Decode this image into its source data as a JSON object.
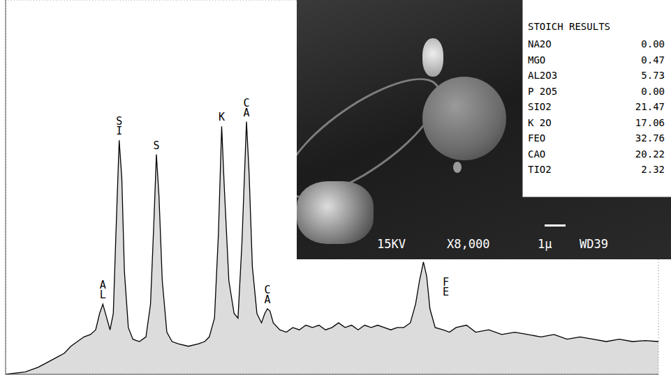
{
  "chart_data": {
    "type": "area",
    "color": "#000000",
    "grid": true,
    "tick_labels": false,
    "xlim": [
      0,
      10
    ],
    "xticks": [
      0,
      1,
      2,
      3,
      4,
      5,
      6,
      7,
      8,
      9,
      10
    ],
    "ylim": [
      0,
      8
    ],
    "yticks": [
      0,
      1,
      2,
      3,
      4,
      5,
      6,
      7,
      8
    ],
    "x": [
      0.0,
      0.3,
      0.5,
      0.7,
      0.9,
      1.0,
      1.1,
      1.2,
      1.3,
      1.38,
      1.44,
      1.49,
      1.54,
      1.6,
      1.65,
      1.69,
      1.74,
      1.78,
      1.82,
      1.88,
      1.95,
      2.05,
      2.15,
      2.22,
      2.27,
      2.31,
      2.35,
      2.4,
      2.47,
      2.55,
      2.65,
      2.8,
      2.95,
      3.05,
      3.12,
      3.2,
      3.26,
      3.31,
      3.35,
      3.42,
      3.5,
      3.56,
      3.62,
      3.69,
      3.73,
      3.78,
      3.85,
      3.92,
      3.97,
      4.01,
      4.05,
      4.1,
      4.2,
      4.3,
      4.4,
      4.5,
      4.6,
      4.7,
      4.8,
      4.9,
      5.0,
      5.1,
      5.2,
      5.3,
      5.4,
      5.5,
      5.6,
      5.7,
      5.8,
      5.9,
      6.0,
      6.1,
      6.2,
      6.28,
      6.34,
      6.4,
      6.45,
      6.5,
      6.58,
      6.7,
      6.8,
      6.9,
      7.06,
      7.2,
      7.4,
      7.6,
      7.8,
      8.0,
      8.2,
      8.4,
      8.6,
      8.8,
      9.0,
      9.2,
      9.4,
      9.6,
      9.8,
      10.0
    ],
    "values": [
      0,
      0.05,
      0.15,
      0.3,
      0.45,
      0.6,
      0.7,
      0.8,
      0.85,
      0.95,
      1.3,
      1.5,
      1.25,
      0.95,
      1.3,
      3.0,
      5.0,
      4.2,
      2.2,
      1.0,
      0.75,
      0.7,
      0.8,
      1.5,
      3.2,
      4.7,
      3.8,
      2.0,
      0.9,
      0.7,
      0.65,
      0.6,
      0.65,
      0.7,
      0.8,
      1.2,
      3.0,
      5.3,
      4.0,
      2.0,
      1.3,
      1.2,
      2.8,
      5.4,
      4.3,
      2.3,
      1.3,
      1.1,
      1.3,
      1.4,
      1.35,
      1.1,
      0.95,
      0.9,
      1.0,
      0.95,
      1.05,
      1.0,
      1.05,
      0.95,
      1.0,
      1.1,
      1.0,
      1.05,
      0.95,
      1.05,
      1.0,
      1.05,
      1.0,
      0.95,
      1.0,
      1.0,
      1.1,
      1.5,
      2.0,
      2.4,
      2.1,
      1.4,
      1.0,
      0.95,
      0.9,
      1.0,
      1.05,
      0.9,
      0.95,
      0.85,
      0.9,
      0.85,
      0.8,
      0.85,
      0.75,
      0.8,
      0.75,
      0.7,
      0.75,
      0.7,
      0.72,
      0.7
    ],
    "annotations": [
      {
        "text": "AL",
        "x": 1.49,
        "y": 1.5
      },
      {
        "text": "SI",
        "x": 1.74,
        "y": 5.0
      },
      {
        "text": "S",
        "x": 2.31,
        "y": 4.7
      },
      {
        "text": "K",
        "x": 3.31,
        "y": 5.3
      },
      {
        "text": "CA",
        "x": 3.69,
        "y": 5.4
      },
      {
        "text": "CA",
        "x": 4.01,
        "y": 1.4
      },
      {
        "text": "FE",
        "x": 6.4,
        "y": 2.4
      }
    ]
  },
  "micrograph": {
    "labels": [
      "15KV",
      "X8,000",
      "1μ",
      "WD39"
    ]
  },
  "table": {
    "title": "STOICH RESULTS",
    "rows": [
      [
        "NA2O",
        "0.00"
      ],
      [
        "MGO",
        "0.47"
      ],
      [
        "AL2O3",
        "5.73"
      ],
      [
        "P 2O5",
        "0.00"
      ],
      [
        "SIO2",
        "21.47"
      ],
      [
        "K 2O",
        "17.06"
      ],
      [
        "FEO",
        "32.76"
      ],
      [
        "CAO",
        "20.22"
      ],
      [
        "TIO2",
        "2.32"
      ]
    ]
  }
}
